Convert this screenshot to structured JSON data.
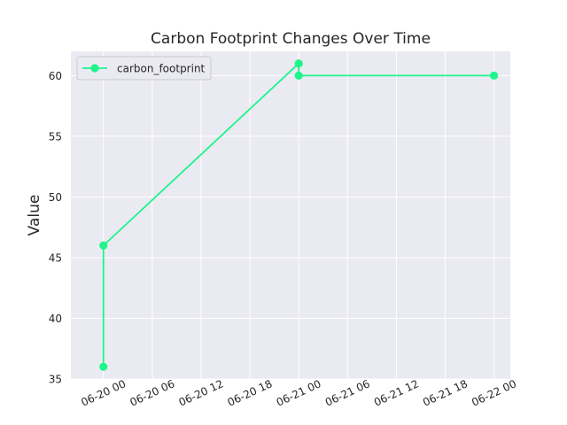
{
  "chart_data": {
    "type": "line",
    "title": "Carbon Footprint Changes Over Time",
    "xlabel": "",
    "ylabel": "Value",
    "x_type": "datetime",
    "xlim": [
      "2024-06-19T20:00",
      "2024-06-22T02:00"
    ],
    "ylim": [
      35,
      62
    ],
    "x_ticks": [
      "2024-06-20T00:00",
      "2024-06-20T06:00",
      "2024-06-20T12:00",
      "2024-06-20T18:00",
      "2024-06-21T00:00",
      "2024-06-21T06:00",
      "2024-06-21T12:00",
      "2024-06-21T18:00",
      "2024-06-22T00:00"
    ],
    "x_tick_labels": [
      "06-20 00",
      "06-20 06",
      "06-20 12",
      "06-20 18",
      "06-21 00",
      "06-21 06",
      "06-21 12",
      "06-21 18",
      "06-22 00"
    ],
    "y_ticks": [
      35,
      40,
      45,
      50,
      55,
      60
    ],
    "y_tick_labels": [
      "35",
      "40",
      "45",
      "50",
      "55",
      "60"
    ],
    "grid": true,
    "legend_position": "top-left",
    "series": [
      {
        "name": "carbon_footprint",
        "color": "#1ef58a",
        "marker": "circle",
        "points": [
          {
            "x": "2024-06-20T00:00",
            "y": 36
          },
          {
            "x": "2024-06-20T00:00",
            "y": 46
          },
          {
            "x": "2024-06-21T00:00",
            "y": 61
          },
          {
            "x": "2024-06-21T00:00",
            "y": 60
          },
          {
            "x": "2024-06-22T00:00",
            "y": 60
          }
        ]
      }
    ],
    "colors": {
      "plot_background": "#eaeaf2",
      "grid": "#ffffff",
      "text": "#262626"
    }
  }
}
